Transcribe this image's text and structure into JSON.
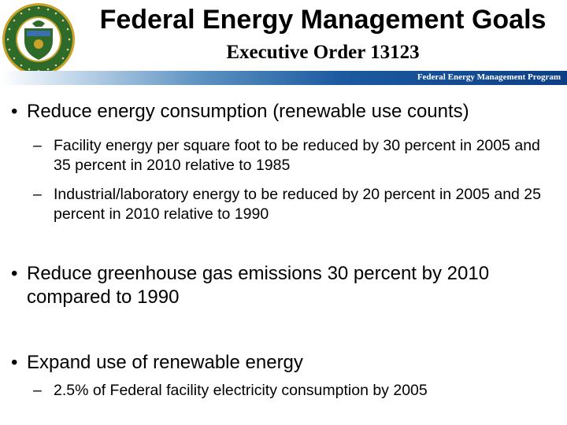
{
  "header": {
    "title": "Federal Energy Management Goals",
    "subtitle": "Executive Order 13123",
    "banner_label": "Federal Energy Management Program",
    "seal_icon": "department-of-energy-seal-icon",
    "seal_text": "DEPARTMENT OF ENERGY · UNITED STATES OF AMERICA"
  },
  "content": {
    "bullet_symbol": "•",
    "dash_symbol": "–",
    "bullets": [
      {
        "text": "Reduce energy consumption (renewable use counts)",
        "subs": [
          "Facility energy per square foot to be reduced by 30 percent in 2005 and 35 percent in 2010 relative to 1985",
          "Industrial/laboratory energy to be reduced by 20 percent in 2005 and 25 percent in 2010 relative to 1990"
        ]
      },
      {
        "text": "Reduce greenhouse gas emissions 30 percent by 2010 compared to 1990",
        "subs": []
      },
      {
        "text": "Expand use of renewable energy",
        "subs": [
          "2.5% of Federal facility electricity consumption by 2005"
        ]
      }
    ]
  },
  "colors": {
    "banner_dark": "#0d3f86",
    "seal_green": "#2e6b2b",
    "seal_gold": "#c9a227"
  }
}
